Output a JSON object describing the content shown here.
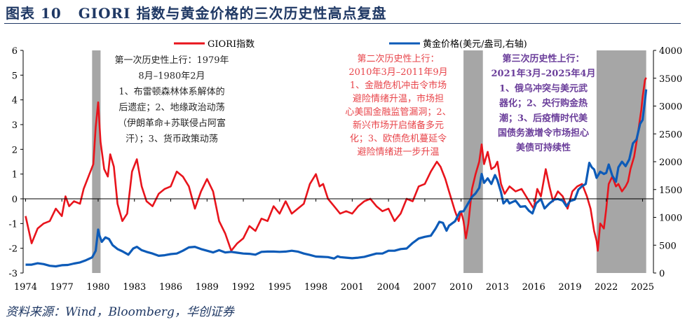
{
  "header": {
    "figure_label": "图表 10",
    "title": "GIORI 指数与黄金价格的三次历史性高点复盘"
  },
  "source": "资料来源：Wind，Bloomberg，华创证券",
  "colors": {
    "giori": "#e8141c",
    "gold": "#0d5bb8",
    "shade": "#a6a6a6",
    "ann1": "#262626",
    "ann2": "#e8444a",
    "ann3": "#6a3d9a",
    "title": "#1f3864"
  },
  "chart_data": {
    "type": "line",
    "xlim": [
      1973.8,
      2025.9
    ],
    "x_ticks": [
      "1974",
      "1977",
      "1980",
      "1983",
      "1986",
      "1989",
      "1992",
      "1995",
      "1998",
      "2001",
      "2004",
      "2007",
      "2010",
      "2013",
      "2016",
      "2019",
      "2022",
      "2025"
    ],
    "y_left": {
      "ylim": [
        -3,
        6
      ],
      "ticks": [
        "-3",
        "-2",
        "-1",
        "0",
        "1",
        "2",
        "3",
        "4",
        "5",
        "6"
      ]
    },
    "y_right": {
      "ylim": [
        0,
        4000
      ],
      "ticks": [
        "0",
        "500",
        "1000",
        "1500",
        "2000",
        "2500",
        "3000",
        "3500",
        "4000"
      ]
    },
    "legend": {
      "placement": "top",
      "items": [
        "GIORI指数",
        "黄金价格(美元/盎司,右轴)"
      ]
    },
    "shaded_periods": [
      [
        1979.5,
        1980.2
      ],
      [
        2010.2,
        2011.8
      ],
      [
        2021.2,
        2025.3
      ]
    ],
    "series": [
      {
        "name": "GIORI指数",
        "axis": "left",
        "points": [
          [
            1974.0,
            -0.7
          ],
          [
            1974.5,
            -1.8
          ],
          [
            1975.0,
            -1.2
          ],
          [
            1975.5,
            -1.0
          ],
          [
            1976.0,
            -0.9
          ],
          [
            1976.5,
            -0.4
          ],
          [
            1977.0,
            -0.7
          ],
          [
            1977.3,
            0.1
          ],
          [
            1977.6,
            -0.3
          ],
          [
            1978.0,
            -0.1
          ],
          [
            1978.5,
            -0.2
          ],
          [
            1978.8,
            0.4
          ],
          [
            1979.2,
            0.9
          ],
          [
            1979.6,
            1.4
          ],
          [
            1979.8,
            2.9
          ],
          [
            1980.0,
            3.9
          ],
          [
            1980.2,
            2.3
          ],
          [
            1980.5,
            1.2
          ],
          [
            1980.8,
            0.9
          ],
          [
            1981.0,
            1.8
          ],
          [
            1981.3,
            1.3
          ],
          [
            1981.6,
            -0.2
          ],
          [
            1982.0,
            -0.9
          ],
          [
            1982.4,
            -0.6
          ],
          [
            1982.8,
            1.1
          ],
          [
            1983.2,
            1.6
          ],
          [
            1983.6,
            0.5
          ],
          [
            1984.0,
            -0.1
          ],
          [
            1984.5,
            -0.3
          ],
          [
            1985.0,
            0.2
          ],
          [
            1985.5,
            0.4
          ],
          [
            1986.0,
            0.5
          ],
          [
            1986.5,
            1.1
          ],
          [
            1987.0,
            0.9
          ],
          [
            1987.5,
            0.5
          ],
          [
            1988.0,
            -0.4
          ],
          [
            1988.5,
            0.3
          ],
          [
            1989.0,
            0.8
          ],
          [
            1989.5,
            0.3
          ],
          [
            1990.0,
            -0.9
          ],
          [
            1990.5,
            -1.4
          ],
          [
            1991.0,
            -2.1
          ],
          [
            1991.5,
            -1.8
          ],
          [
            1992.0,
            -1.6
          ],
          [
            1992.5,
            -1.1
          ],
          [
            1993.0,
            -1.3
          ],
          [
            1993.5,
            -0.8
          ],
          [
            1994.0,
            -0.9
          ],
          [
            1994.5,
            -0.3
          ],
          [
            1995.0,
            -0.6
          ],
          [
            1995.5,
            -0.1
          ],
          [
            1996.0,
            -0.6
          ],
          [
            1996.5,
            -0.4
          ],
          [
            1997.0,
            -0.2
          ],
          [
            1997.5,
            0.6
          ],
          [
            1998.0,
            1.0
          ],
          [
            1998.3,
            0.5
          ],
          [
            1998.6,
            0.6
          ],
          [
            1999.0,
            0.0
          ],
          [
            1999.5,
            -0.3
          ],
          [
            2000.0,
            -0.6
          ],
          [
            2000.5,
            -0.5
          ],
          [
            2001.0,
            -0.6
          ],
          [
            2001.5,
            -0.3
          ],
          [
            2002.0,
            -0.1
          ],
          [
            2002.5,
            0.0
          ],
          [
            2003.0,
            -0.3
          ],
          [
            2003.5,
            -0.5
          ],
          [
            2004.0,
            -0.4
          ],
          [
            2004.5,
            -0.9
          ],
          [
            2005.0,
            -0.6
          ],
          [
            2005.5,
            0.0
          ],
          [
            2006.0,
            -0.1
          ],
          [
            2006.5,
            0.5
          ],
          [
            2007.0,
            0.6
          ],
          [
            2007.5,
            1.1
          ],
          [
            2008.0,
            1.5
          ],
          [
            2008.3,
            1.3
          ],
          [
            2008.7,
            0.8
          ],
          [
            2009.0,
            0.3
          ],
          [
            2009.5,
            -0.5
          ],
          [
            2009.8,
            -0.9
          ],
          [
            2010.0,
            -0.5
          ],
          [
            2010.2,
            -0.9
          ],
          [
            2010.4,
            -1.6
          ],
          [
            2010.6,
            -1.0
          ],
          [
            2010.9,
            0.4
          ],
          [
            2011.2,
            1.0
          ],
          [
            2011.5,
            1.5
          ],
          [
            2011.7,
            2.2
          ],
          [
            2011.9,
            1.4
          ],
          [
            2012.2,
            1.9
          ],
          [
            2012.5,
            1.2
          ],
          [
            2012.8,
            1.3
          ],
          [
            2013.0,
            1.5
          ],
          [
            2013.3,
            0.6
          ],
          [
            2013.6,
            0.2
          ],
          [
            2014.0,
            0.5
          ],
          [
            2014.5,
            0.3
          ],
          [
            2015.0,
            0.4
          ],
          [
            2015.5,
            0.0
          ],
          [
            2016.0,
            -0.4
          ],
          [
            2016.3,
            0.4
          ],
          [
            2016.6,
            0.1
          ],
          [
            2017.0,
            1.2
          ],
          [
            2017.3,
            0.5
          ],
          [
            2017.6,
            -0.1
          ],
          [
            2018.0,
            0.3
          ],
          [
            2018.4,
            0.1
          ],
          [
            2018.8,
            -0.4
          ],
          [
            2019.2,
            0.3
          ],
          [
            2019.6,
            0.5
          ],
          [
            2020.0,
            0.6
          ],
          [
            2020.4,
            0.1
          ],
          [
            2020.7,
            -0.4
          ],
          [
            2021.0,
            -1.3
          ],
          [
            2021.2,
            -1.7
          ],
          [
            2021.3,
            -2.1
          ],
          [
            2021.5,
            -1.0
          ],
          [
            2021.8,
            -1.2
          ],
          [
            2022.0,
            -0.4
          ],
          [
            2022.2,
            0.6
          ],
          [
            2022.5,
            0.9
          ],
          [
            2022.8,
            0.5
          ],
          [
            2023.0,
            0.6
          ],
          [
            2023.3,
            0.3
          ],
          [
            2023.6,
            0.5
          ],
          [
            2023.8,
            0.7
          ],
          [
            2024.0,
            1.2
          ],
          [
            2024.3,
            1.7
          ],
          [
            2024.6,
            2.6
          ],
          [
            2024.9,
            3.6
          ],
          [
            2025.0,
            4.1
          ],
          [
            2025.2,
            4.8
          ],
          [
            2025.3,
            4.9
          ]
        ]
      },
      {
        "name": "黄金价格(美元/盎司,右轴)",
        "axis": "right",
        "points": [
          [
            1974.0,
            150
          ],
          [
            1974.5,
            150
          ],
          [
            1975.0,
            175
          ],
          [
            1975.5,
            160
          ],
          [
            1976.0,
            130
          ],
          [
            1976.5,
            120
          ],
          [
            1977.0,
            140
          ],
          [
            1977.5,
            145
          ],
          [
            1978.0,
            170
          ],
          [
            1978.5,
            190
          ],
          [
            1979.0,
            230
          ],
          [
            1979.5,
            280
          ],
          [
            1979.8,
            400
          ],
          [
            1980.0,
            780
          ],
          [
            1980.1,
            680
          ],
          [
            1980.3,
            560
          ],
          [
            1980.6,
            640
          ],
          [
            1980.9,
            610
          ],
          [
            1981.2,
            500
          ],
          [
            1981.6,
            430
          ],
          [
            1982.0,
            390
          ],
          [
            1982.5,
            330
          ],
          [
            1982.9,
            440
          ],
          [
            1983.2,
            470
          ],
          [
            1983.6,
            410
          ],
          [
            1984.0,
            380
          ],
          [
            1984.5,
            350
          ],
          [
            1985.0,
            310
          ],
          [
            1985.5,
            320
          ],
          [
            1986.0,
            340
          ],
          [
            1986.5,
            350
          ],
          [
            1987.0,
            400
          ],
          [
            1987.5,
            460
          ],
          [
            1988.0,
            470
          ],
          [
            1988.5,
            430
          ],
          [
            1989.0,
            400
          ],
          [
            1989.5,
            370
          ],
          [
            1990.0,
            410
          ],
          [
            1990.5,
            370
          ],
          [
            1991.0,
            380
          ],
          [
            1991.5,
            365
          ],
          [
            1992.0,
            350
          ],
          [
            1992.5,
            345
          ],
          [
            1993.0,
            330
          ],
          [
            1993.5,
            380
          ],
          [
            1994.0,
            385
          ],
          [
            1994.5,
            385
          ],
          [
            1995.0,
            380
          ],
          [
            1995.5,
            385
          ],
          [
            1996.0,
            400
          ],
          [
            1996.5,
            385
          ],
          [
            1997.0,
            350
          ],
          [
            1997.5,
            325
          ],
          [
            1998.0,
            295
          ],
          [
            1998.5,
            290
          ],
          [
            1999.0,
            285
          ],
          [
            1999.5,
            260
          ],
          [
            1999.8,
            300
          ],
          [
            2000.0,
            285
          ],
          [
            2000.5,
            275
          ],
          [
            2001.0,
            265
          ],
          [
            2001.5,
            275
          ],
          [
            2002.0,
            290
          ],
          [
            2002.5,
            320
          ],
          [
            2003.0,
            350
          ],
          [
            2003.5,
            350
          ],
          [
            2004.0,
            400
          ],
          [
            2004.5,
            400
          ],
          [
            2005.0,
            430
          ],
          [
            2005.5,
            440
          ],
          [
            2006.0,
            540
          ],
          [
            2006.5,
            620
          ],
          [
            2007.0,
            650
          ],
          [
            2007.5,
            670
          ],
          [
            2007.9,
            800
          ],
          [
            2008.2,
            920
          ],
          [
            2008.5,
            900
          ],
          [
            2008.8,
            760
          ],
          [
            2009.0,
            850
          ],
          [
            2009.5,
            930
          ],
          [
            2009.9,
            1100
          ],
          [
            2010.2,
            1110
          ],
          [
            2010.5,
            1220
          ],
          [
            2010.9,
            1370
          ],
          [
            2011.2,
            1430
          ],
          [
            2011.5,
            1530
          ],
          [
            2011.7,
            1780
          ],
          [
            2011.9,
            1620
          ],
          [
            2012.2,
            1700
          ],
          [
            2012.5,
            1600
          ],
          [
            2012.8,
            1760
          ],
          [
            2013.0,
            1670
          ],
          [
            2013.3,
            1450
          ],
          [
            2013.5,
            1250
          ],
          [
            2013.8,
            1320
          ],
          [
            2014.0,
            1250
          ],
          [
            2014.5,
            1300
          ],
          [
            2014.9,
            1190
          ],
          [
            2015.3,
            1200
          ],
          [
            2015.6,
            1120
          ],
          [
            2015.9,
            1070
          ],
          [
            2016.2,
            1250
          ],
          [
            2016.6,
            1330
          ],
          [
            2016.9,
            1160
          ],
          [
            2017.3,
            1250
          ],
          [
            2017.7,
            1320
          ],
          [
            2018.0,
            1330
          ],
          [
            2018.4,
            1300
          ],
          [
            2018.7,
            1200
          ],
          [
            2019.0,
            1290
          ],
          [
            2019.4,
            1320
          ],
          [
            2019.7,
            1500
          ],
          [
            2020.0,
            1560
          ],
          [
            2020.3,
            1600
          ],
          [
            2020.6,
            1980
          ],
          [
            2020.8,
            1900
          ],
          [
            2021.0,
            1860
          ],
          [
            2021.2,
            1710
          ],
          [
            2021.5,
            1820
          ],
          [
            2021.8,
            1780
          ],
          [
            2022.0,
            1800
          ],
          [
            2022.2,
            1950
          ],
          [
            2022.5,
            1750
          ],
          [
            2022.8,
            1640
          ],
          [
            2023.0,
            1900
          ],
          [
            2023.3,
            2000
          ],
          [
            2023.6,
            1920
          ],
          [
            2023.9,
            2040
          ],
          [
            2024.2,
            2330
          ],
          [
            2024.5,
            2400
          ],
          [
            2024.8,
            2680
          ],
          [
            2025.0,
            2750
          ],
          [
            2025.2,
            3100
          ],
          [
            2025.3,
            3300
          ]
        ]
      }
    ],
    "annotations": [
      {
        "lines": [
          "第一次历史性上行：1979年",
          "8月–1980年2月",
          "1、布雷顿森林体系解体的",
          "后遗症；2、地缘政治动荡",
          "（伊朗革命+苏联侵占阿富",
          "汗）；3、货币政策动荡"
        ]
      },
      {
        "lines": [
          "第二次历史性上行：",
          "2010年3月–2011年9月",
          "1、金融危机冲击令市场",
          "避险情绪升温，市场担",
          "心美国金融监管漏洞；2、",
          "新兴市场开启储备多元",
          "化；3、欧债危机蔓延令",
          "避险情绪进一步升温"
        ]
      },
      {
        "lines": [
          "第三次历史性上行：",
          "2021年3月–2025年4月",
          "1、俄乌冲突与美元武",
          "器化；2、央行购金热",
          "潮；3、后疫情时代美",
          "国债务激增令市场担心",
          "美债可持续性"
        ]
      }
    ]
  }
}
